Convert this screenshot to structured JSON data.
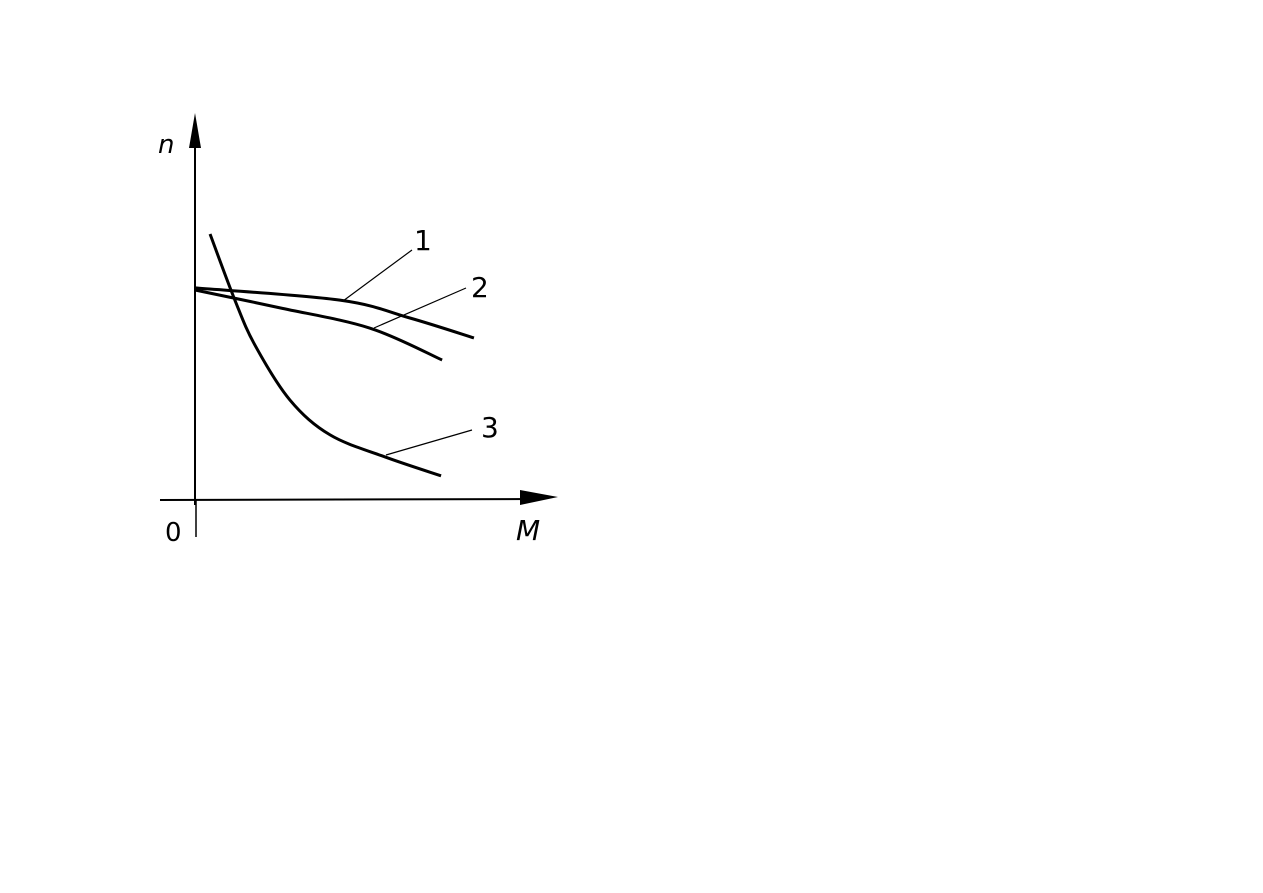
{
  "chart_data": {
    "type": "line",
    "title": "",
    "xlabel": "M",
    "ylabel": "n",
    "origin_label": "0",
    "xlim": [
      0,
      100
    ],
    "ylim": [
      0,
      100
    ],
    "grid": false,
    "legend": "none",
    "line_color": "#000000",
    "series": [
      {
        "name": "1",
        "x": [
          0,
          41.4,
          61.4,
          79.7
        ],
        "y": [
          60.6,
          57.1,
          52,
          46.3
        ]
      },
      {
        "name": "2",
        "x": [
          0,
          24.3,
          50,
          70.6
        ],
        "y": [
          60,
          54.9,
          49.1,
          40
        ]
      },
      {
        "name": "3",
        "x": [
          4.3,
          11.4,
          17.1,
          27.1,
          38.6,
          54.3,
          70.3
        ],
        "y": [
          76,
          57.1,
          44.3,
          28.6,
          18.6,
          12.3,
          6.9
        ]
      }
    ]
  }
}
